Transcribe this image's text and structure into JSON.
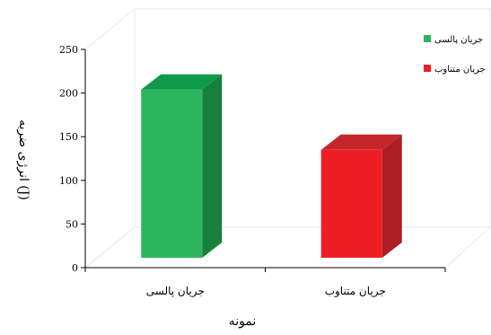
{
  "chart_data": {
    "type": "bar",
    "title": "",
    "xlabel": "نمونه",
    "ylabel": "انرژی ضربه (J)",
    "ylim": [
      0,
      250
    ],
    "yticks": [
      "0",
      "50",
      "100",
      "150",
      "200",
      "250"
    ],
    "categories": [
      "جریان پالسی",
      "جریان متناوب"
    ],
    "values": [
      204,
      135
    ],
    "series": [
      {
        "name": "جریان پالسی",
        "values": [
          204,
          null
        ]
      },
      {
        "name": "جریان متناوب",
        "values": [
          null,
          135
        ]
      }
    ],
    "grid": false,
    "legend": "top-right",
    "three_d": true,
    "colors": {
      "pulsed_front": "#2db55d",
      "pulsed_side": "#17803d",
      "pulsed_top": "#0f9a4a",
      "alternating_front": "#ee1f24",
      "alternating_side": "#ad1f24",
      "alternating_top": "#c5262b",
      "axis": "#000000",
      "wall": "#e8e8e8"
    }
  }
}
